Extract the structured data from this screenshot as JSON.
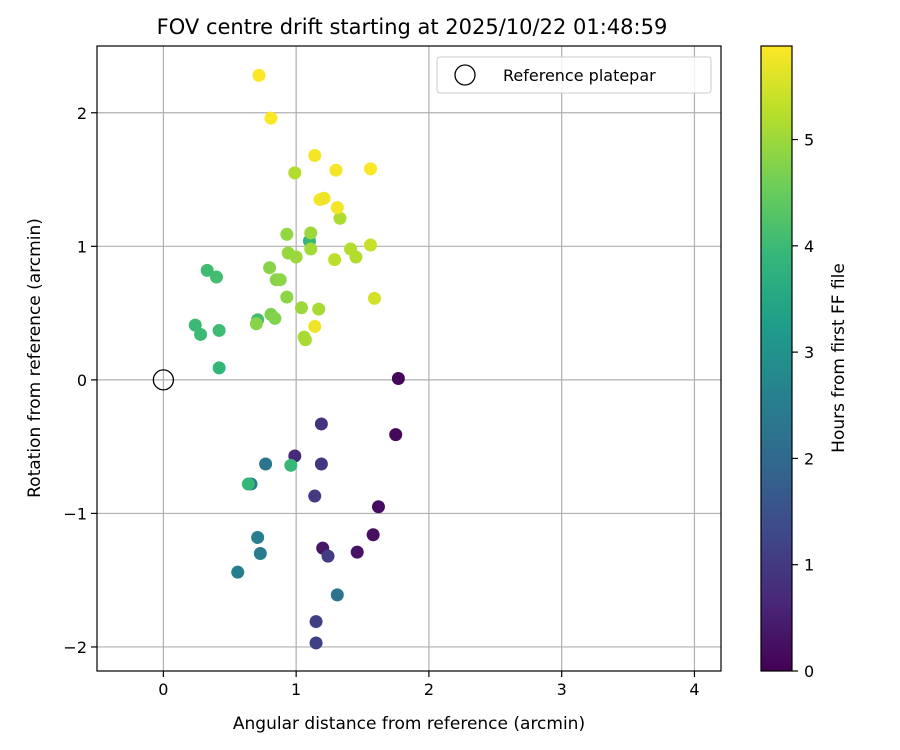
{
  "chart_data": {
    "type": "scatter",
    "title": "FOV centre drift starting at 2025/10/22 01:48:59",
    "xlabel": "Angular distance from reference (arcmin)",
    "ylabel": "Rotation from reference (arcmin)",
    "xlim": [
      -0.5,
      4.2
    ],
    "ylim": [
      -2.18,
      2.5
    ],
    "xticks": [
      0,
      1,
      2,
      3,
      4
    ],
    "xtick_labels": [
      "0",
      "1",
      "2",
      "3",
      "4"
    ],
    "yticks": [
      -2,
      -1,
      0,
      1,
      2
    ],
    "ytick_labels": [
      "−2",
      "−1",
      "0",
      "1",
      "2"
    ],
    "grid": true,
    "legend_position": "top-right",
    "legend_label": "Reference platepar",
    "reference_point": {
      "x": 0,
      "y": 0
    },
    "colorbar": {
      "label": "Hours from first FF file",
      "min": 0,
      "max": 5.88,
      "ticks": [
        0,
        1,
        2,
        3,
        4,
        5
      ],
      "tick_labels": [
        "0",
        "1",
        "2",
        "3",
        "4",
        "5"
      ],
      "colormap": [
        "#440154",
        "#482878",
        "#3e4989",
        "#31688e",
        "#26828e",
        "#1f9e89",
        "#35b779",
        "#6ece58",
        "#b5de2b",
        "#fde725"
      ]
    },
    "points": [
      {
        "x": 1.77,
        "y": 0.01,
        "h": 0.05
      },
      {
        "x": 1.75,
        "y": -0.41,
        "h": 0.1
      },
      {
        "x": 1.62,
        "y": -0.95,
        "h": 0.2
      },
      {
        "x": 1.58,
        "y": -1.16,
        "h": 0.25
      },
      {
        "x": 1.46,
        "y": -1.29,
        "h": 0.3
      },
      {
        "x": 1.2,
        "y": -1.26,
        "h": 0.35
      },
      {
        "x": 0.99,
        "y": -0.57,
        "h": 0.7
      },
      {
        "x": 1.19,
        "y": -0.33,
        "h": 0.9
      },
      {
        "x": 1.19,
        "y": -0.63,
        "h": 0.95
      },
      {
        "x": 1.14,
        "y": -0.87,
        "h": 1.0
      },
      {
        "x": 1.24,
        "y": -1.32,
        "h": 1.05
      },
      {
        "x": 1.15,
        "y": -1.81,
        "h": 1.1
      },
      {
        "x": 1.15,
        "y": -1.97,
        "h": 1.15
      },
      {
        "x": 1.31,
        "y": -1.61,
        "h": 2.2
      },
      {
        "x": 0.77,
        "y": -0.63,
        "h": 2.3
      },
      {
        "x": 0.66,
        "y": -0.78,
        "h": 2.4
      },
      {
        "x": 0.71,
        "y": -1.18,
        "h": 2.5
      },
      {
        "x": 0.73,
        "y": -1.3,
        "h": 2.45
      },
      {
        "x": 0.56,
        "y": -1.44,
        "h": 2.55
      },
      {
        "x": 0.64,
        "y": -0.78,
        "h": 3.9
      },
      {
        "x": 0.96,
        "y": -0.64,
        "h": 3.95
      },
      {
        "x": 0.42,
        "y": 0.09,
        "h": 3.9
      },
      {
        "x": 0.24,
        "y": 0.41,
        "h": 4.0
      },
      {
        "x": 0.28,
        "y": 0.34,
        "h": 4.0
      },
      {
        "x": 0.42,
        "y": 0.37,
        "h": 4.05
      },
      {
        "x": 0.33,
        "y": 0.82,
        "h": 4.05
      },
      {
        "x": 0.4,
        "y": 0.77,
        "h": 4.1
      },
      {
        "x": 0.71,
        "y": 0.45,
        "h": 4.1
      },
      {
        "x": 1.1,
        "y": 1.04,
        "h": 3.9
      },
      {
        "x": 0.7,
        "y": 0.42,
        "h": 4.8
      },
      {
        "x": 0.81,
        "y": 0.49,
        "h": 4.7
      },
      {
        "x": 0.84,
        "y": 0.46,
        "h": 4.75
      },
      {
        "x": 0.8,
        "y": 0.84,
        "h": 4.8
      },
      {
        "x": 0.85,
        "y": 0.75,
        "h": 4.8
      },
      {
        "x": 0.88,
        "y": 0.75,
        "h": 4.85
      },
      {
        "x": 0.93,
        "y": 0.62,
        "h": 4.85
      },
      {
        "x": 0.93,
        "y": 1.09,
        "h": 4.9
      },
      {
        "x": 0.94,
        "y": 0.95,
        "h": 4.95
      },
      {
        "x": 1.0,
        "y": 0.92,
        "h": 5.0
      },
      {
        "x": 1.04,
        "y": 0.54,
        "h": 5.0
      },
      {
        "x": 1.06,
        "y": 0.32,
        "h": 5.1
      },
      {
        "x": 1.07,
        "y": 0.3,
        "h": 5.1
      },
      {
        "x": 1.11,
        "y": 0.98,
        "h": 5.05
      },
      {
        "x": 1.11,
        "y": 1.1,
        "h": 5.0
      },
      {
        "x": 1.17,
        "y": 0.53,
        "h": 5.1
      },
      {
        "x": 0.99,
        "y": 1.55,
        "h": 5.2
      },
      {
        "x": 1.29,
        "y": 0.9,
        "h": 5.3
      },
      {
        "x": 1.33,
        "y": 1.21,
        "h": 5.15
      },
      {
        "x": 1.41,
        "y": 0.98,
        "h": 5.2
      },
      {
        "x": 1.45,
        "y": 0.92,
        "h": 5.2
      },
      {
        "x": 1.56,
        "y": 1.01,
        "h": 5.4
      },
      {
        "x": 1.59,
        "y": 0.61,
        "h": 5.5
      },
      {
        "x": 1.14,
        "y": 0.4,
        "h": 5.75
      },
      {
        "x": 1.18,
        "y": 1.35,
        "h": 5.8
      },
      {
        "x": 1.21,
        "y": 1.36,
        "h": 5.75
      },
      {
        "x": 1.31,
        "y": 1.29,
        "h": 5.8
      },
      {
        "x": 1.3,
        "y": 1.57,
        "h": 5.8
      },
      {
        "x": 1.14,
        "y": 1.68,
        "h": 5.8
      },
      {
        "x": 1.56,
        "y": 1.58,
        "h": 5.85
      },
      {
        "x": 0.81,
        "y": 1.96,
        "h": 5.85
      },
      {
        "x": 0.72,
        "y": 2.28,
        "h": 5.88
      }
    ]
  }
}
